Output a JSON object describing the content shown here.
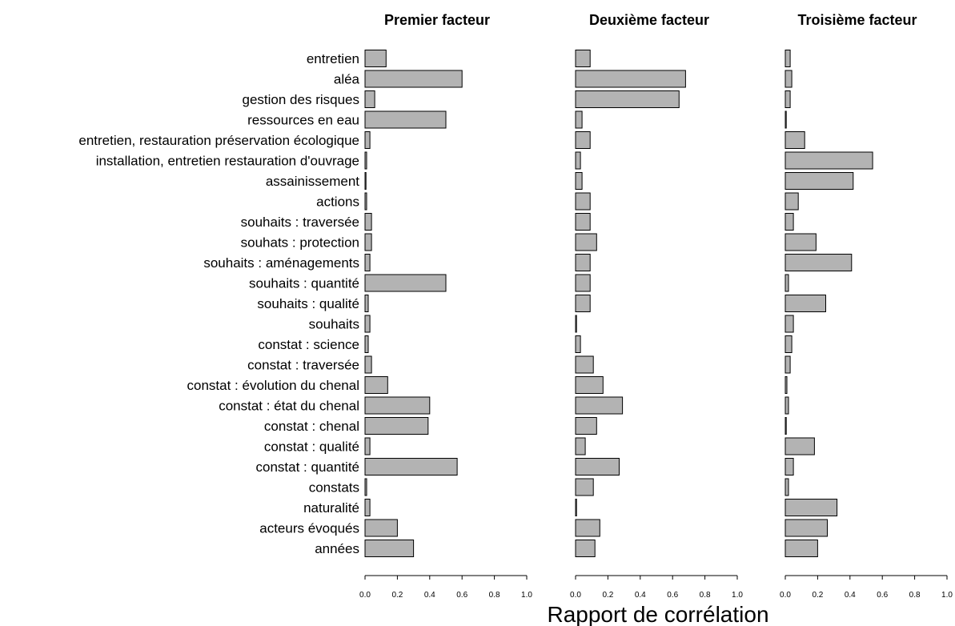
{
  "chart_data": {
    "type": "bar",
    "orientation": "horizontal",
    "categories": [
      "entretien",
      "aléa",
      "gestion des risques",
      "ressources en eau",
      "entretien, restauration préservation écologique",
      "installation, entretien restauration d'ouvrage",
      "assainissement",
      "actions",
      "souhaits : traversée",
      "souhats : protection",
      "souhaits : aménagements",
      "souhaits : quantité",
      "souhaits : qualité",
      "souhaits",
      "constat : science",
      "constat : traversée",
      "constat : évolution du chenal",
      "constat : état du chenal",
      "constat : chenal",
      "constat : qualité",
      "constat : quantité",
      "constats",
      "naturalité",
      "acteurs évoqués",
      "années"
    ],
    "series": [
      {
        "name": "Premier facteur",
        "values": [
          0.13,
          0.6,
          0.06,
          0.5,
          0.03,
          0.01,
          0.005,
          0.01,
          0.04,
          0.04,
          0.03,
          0.5,
          0.02,
          0.03,
          0.02,
          0.04,
          0.14,
          0.4,
          0.39,
          0.03,
          0.57,
          0.01,
          0.03,
          0.2,
          0.3
        ]
      },
      {
        "name": "Deuxième facteur",
        "values": [
          0.09,
          0.68,
          0.64,
          0.04,
          0.09,
          0.03,
          0.04,
          0.09,
          0.09,
          0.13,
          0.09,
          0.09,
          0.09,
          0.002,
          0.03,
          0.11,
          0.17,
          0.29,
          0.13,
          0.06,
          0.27,
          0.11,
          0.005,
          0.15,
          0.12
        ]
      },
      {
        "name": "Troisième facteur",
        "values": [
          0.03,
          0.04,
          0.03,
          0.003,
          0.12,
          0.54,
          0.42,
          0.08,
          0.05,
          0.19,
          0.41,
          0.02,
          0.25,
          0.05,
          0.04,
          0.03,
          0.01,
          0.02,
          0.005,
          0.18,
          0.05,
          0.02,
          0.32,
          0.26,
          0.2
        ]
      }
    ],
    "xlabel": "Rapport de corrélation",
    "xlim": [
      0.0,
      1.0
    ],
    "xticks": [
      "0.0",
      "0.2",
      "0.4",
      "0.6",
      "0.8",
      "1.0"
    ],
    "grid": false,
    "legend": "none",
    "colors": {
      "bar_fill": "#b3b3b3",
      "bar_stroke": "#000000",
      "text": "#000000",
      "background": "#ffffff"
    }
  }
}
